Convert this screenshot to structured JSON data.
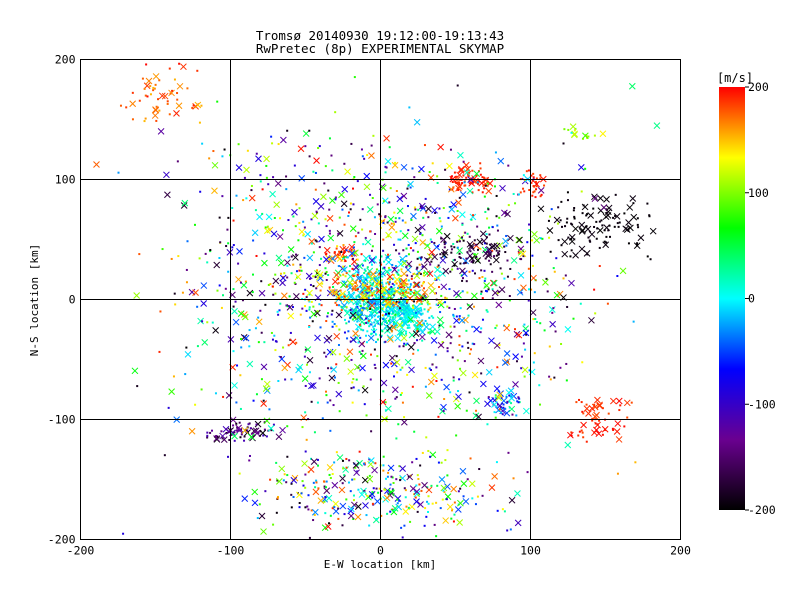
{
  "chart_data": {
    "type": "scatter",
    "title": "Tromsø 20140930 19:12:00-19:13:43",
    "subtitle": "RwPretec (8p) EXPERIMENTAL SKYMAP",
    "xlabel": "E-W location [km]",
    "ylabel": "N-S location [km]",
    "xlim": [
      -200,
      200
    ],
    "ylim": [
      -200,
      200
    ],
    "xticks": [
      "-200",
      "-100",
      "0",
      "100",
      "200"
    ],
    "yticks": [
      "-200",
      "-100",
      "0",
      "100",
      "200"
    ],
    "grid": true,
    "colorbar": {
      "label": "[m/s]",
      "range": [
        -200,
        200
      ],
      "ticks": [
        "-200",
        "-100",
        "0",
        "100",
        "200"
      ],
      "colormap": [
        "#000000",
        "#6a0090",
        "#0000ff",
        "#00ffff",
        "#00ff00",
        "#ffff00",
        "#ff0000"
      ],
      "placement": "right"
    },
    "markers": [
      "cross",
      "dot"
    ],
    "clusters": [
      {
        "x": [
          -175,
          -110
        ],
        "y": [
          140,
          200
        ],
        "v": [
          150,
          200
        ],
        "n": 55
      },
      {
        "x": [
          40,
          80
        ],
        "y": [
          85,
          115
        ],
        "v": [
          180,
          200
        ],
        "n": 70
      },
      {
        "x": [
          90,
          115
        ],
        "y": [
          80,
          110
        ],
        "v": [
          180,
          200
        ],
        "n": 30
      },
      {
        "x": [
          120,
          150
        ],
        "y": [
          130,
          145
        ],
        "v": [
          80,
          140
        ],
        "n": 15
      },
      {
        "x": [
          -40,
          -10
        ],
        "y": [
          30,
          45
        ],
        "v": [
          180,
          200
        ],
        "n": 30
      },
      {
        "x": [
          100,
          190
        ],
        "y": [
          30,
          90
        ],
        "v": [
          -200,
          -190
        ],
        "n": 110
      },
      {
        "x": [
          120,
          170
        ],
        "y": [
          -120,
          -80
        ],
        "v": [
          180,
          200
        ],
        "n": 55
      },
      {
        "x": [
          -120,
          -60
        ],
        "y": [
          -120,
          -100
        ],
        "v": [
          -200,
          -100
        ],
        "n": 70
      },
      {
        "x": [
          -30,
          30
        ],
        "y": [
          -40,
          40
        ],
        "v": [
          -40,
          40
        ],
        "n": 420
      },
      {
        "x": [
          0,
          40
        ],
        "y": [
          -30,
          0
        ],
        "v": [
          -20,
          20
        ],
        "n": 110
      },
      {
        "x": [
          70,
          100
        ],
        "y": [
          -100,
          -70
        ],
        "v": [
          -140,
          40
        ],
        "n": 45
      },
      {
        "x": [
          -100,
          100
        ],
        "y": [
          -200,
          -120
        ],
        "v": [
          -200,
          200
        ],
        "n": 300
      },
      {
        "x": [
          -150,
          150
        ],
        "y": [
          -120,
          150
        ],
        "v": [
          -200,
          200
        ],
        "n": 1050
      },
      {
        "x": [
          -200,
          200
        ],
        "y": [
          -200,
          200
        ],
        "v": [
          -200,
          200
        ],
        "n": 220
      },
      {
        "x": [
          20,
          100
        ],
        "y": [
          20,
          60
        ],
        "v": [
          -200,
          -150
        ],
        "n": 90
      },
      {
        "x": [
          -50,
          50
        ],
        "y": [
          -10,
          30
        ],
        "v": [
          100,
          200
        ],
        "n": 140
      }
    ]
  }
}
